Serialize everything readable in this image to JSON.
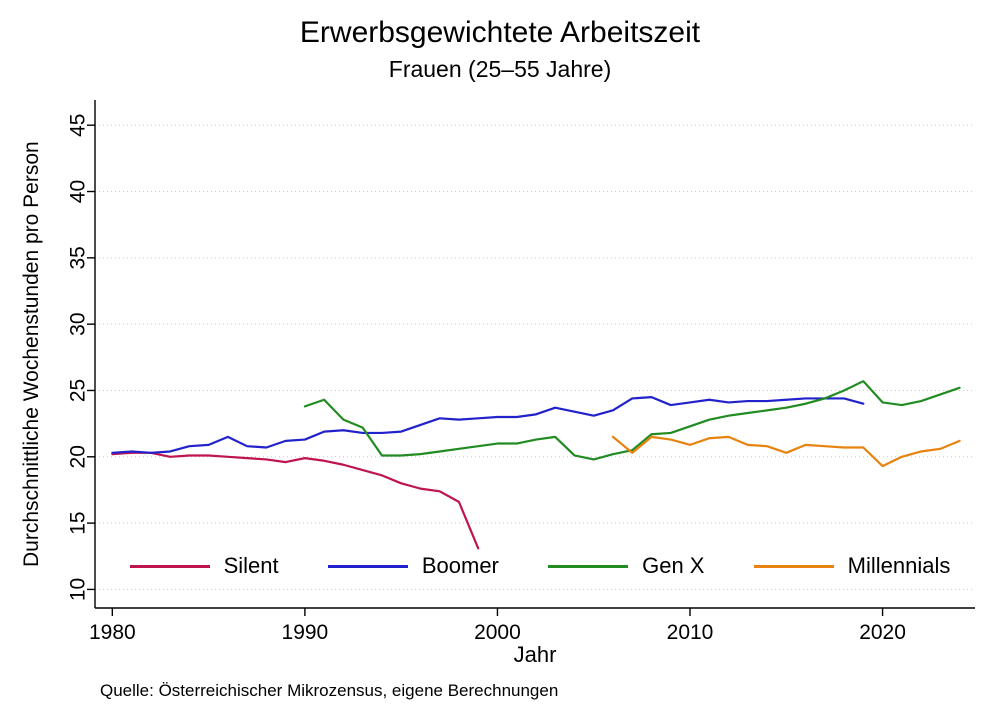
{
  "chart": {
    "title": "Erwerbsgewichtete Arbeitszeit",
    "subtitle": "Frauen (25–55 Jahre)",
    "ylabel": "Durchschnittliche Wochenstunden pro Person",
    "xlabel": "Jahr",
    "note": "Quelle: Österreichischer Mikrozensus, eigene Berechnungen"
  },
  "chart_data": {
    "type": "line",
    "title": "Erwerbsgewichtete Arbeitszeit",
    "subtitle": "Frauen (25–55 Jahre)",
    "xlabel": "Jahr",
    "ylabel": "Durchschnittliche Wochenstunden pro Person",
    "note": "Quelle: Österreichischer Mikrozensus, eigene Berechnungen",
    "xticks": [
      1980,
      1990,
      2000,
      2010,
      2020
    ],
    "yticks": [
      10,
      15,
      20,
      25,
      30,
      35,
      40,
      45
    ],
    "xlim": [
      1979.1,
      2024.8
    ],
    "ylim": [
      8.6,
      46.9
    ],
    "grid": "horizontal-dotted",
    "legend_position": "inside-bottom",
    "series": [
      {
        "name": "Silent",
        "color": "#c0144c",
        "x": [
          1980,
          1981,
          1982,
          1983,
          1984,
          1985,
          1986,
          1987,
          1988,
          1989,
          1990,
          1991,
          1992,
          1993,
          1994,
          1995,
          1996,
          1997,
          1998,
          1999
        ],
        "values": [
          20.2,
          20.3,
          20.3,
          20.0,
          20.1,
          20.1,
          20.0,
          19.9,
          19.8,
          19.6,
          19.9,
          19.7,
          19.4,
          19.0,
          18.6,
          18.0,
          17.6,
          17.4,
          16.6,
          13.1
        ]
      },
      {
        "name": "Boomer",
        "color": "#2222cc",
        "x": [
          1980,
          1981,
          1982,
          1983,
          1984,
          1985,
          1986,
          1987,
          1988,
          1989,
          1990,
          1991,
          1992,
          1993,
          1994,
          1995,
          1996,
          1997,
          1998,
          1999,
          2000,
          2001,
          2002,
          2003,
          2004,
          2005,
          2006,
          2007,
          2008,
          2009,
          2010,
          2011,
          2012,
          2013,
          2014,
          2015,
          2016,
          2017,
          2018,
          2019
        ],
        "values": [
          20.3,
          20.4,
          20.3,
          20.4,
          20.8,
          20.9,
          21.5,
          20.8,
          20.7,
          21.2,
          21.3,
          21.9,
          22.0,
          21.8,
          21.8,
          21.9,
          22.4,
          22.9,
          22.8,
          22.9,
          23.0,
          23.0,
          23.2,
          23.7,
          23.4,
          23.1,
          23.5,
          24.4,
          24.5,
          23.9,
          24.1,
          24.3,
          24.1,
          24.2,
          24.2,
          24.3,
          24.4,
          24.4,
          24.4,
          24.0
        ]
      },
      {
        "name": "Gen X",
        "color": "#228b22",
        "x": [
          1990,
          1991,
          1992,
          1993,
          1994,
          1995,
          1996,
          1997,
          1998,
          1999,
          2000,
          2001,
          2002,
          2003,
          2004,
          2005,
          2006,
          2007,
          2008,
          2009,
          2010,
          2011,
          2012,
          2013,
          2014,
          2015,
          2016,
          2017,
          2018,
          2019,
          2020,
          2021,
          2022,
          2023,
          2024
        ],
        "values": [
          23.8,
          24.3,
          22.8,
          22.2,
          20.1,
          20.1,
          20.2,
          20.4,
          20.6,
          20.8,
          21.0,
          21.0,
          21.3,
          21.5,
          20.1,
          19.8,
          20.2,
          20.5,
          21.7,
          21.8,
          22.3,
          22.8,
          23.1,
          23.3,
          23.5,
          23.7,
          24.0,
          24.4,
          25.0,
          25.7,
          24.1,
          23.9,
          24.2,
          24.7,
          25.2
        ]
      },
      {
        "name": "Millennials",
        "color": "#e8820e",
        "x": [
          2006,
          2007,
          2008,
          2009,
          2010,
          2011,
          2012,
          2013,
          2014,
          2015,
          2016,
          2017,
          2018,
          2019,
          2020,
          2021,
          2022,
          2023,
          2024
        ],
        "values": [
          21.5,
          20.3,
          21.5,
          21.3,
          20.9,
          21.4,
          21.5,
          20.9,
          20.8,
          20.3,
          20.9,
          20.8,
          20.7,
          20.7,
          19.3,
          20.0,
          20.4,
          20.6,
          21.2
        ]
      }
    ]
  }
}
